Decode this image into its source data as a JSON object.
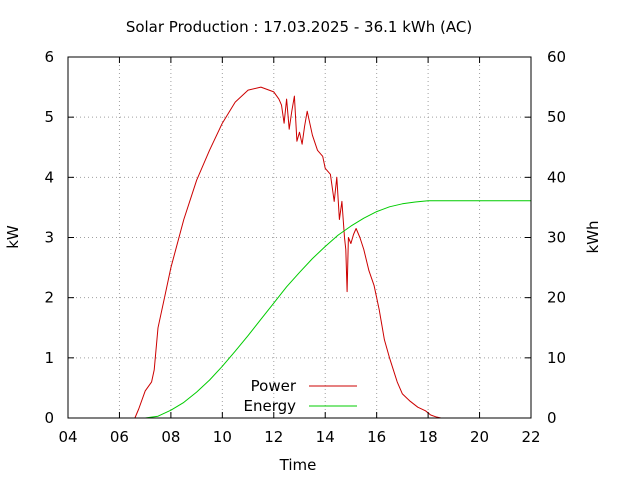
{
  "chart_data": {
    "type": "line",
    "title": "Solar Production : 17.03.2025 - 36.1 kWh (AC)",
    "xlabel": "Time",
    "ylabel_left": "kW",
    "ylabel_right": "kWh",
    "xlim": [
      4,
      22
    ],
    "ylim_left": [
      0,
      6
    ],
    "ylim_right": [
      0,
      60
    ],
    "x_ticks": [
      4,
      6,
      8,
      10,
      12,
      14,
      16,
      18,
      20,
      22
    ],
    "x_tick_labels": [
      "04",
      "06",
      "08",
      "10",
      "12",
      "14",
      "16",
      "18",
      "20",
      "22"
    ],
    "y_left_ticks": [
      0,
      1,
      2,
      3,
      4,
      5,
      6
    ],
    "y_left_tick_labels": [
      "0",
      "1",
      "2",
      "3",
      "4",
      "5",
      "6"
    ],
    "y_right_ticks": [
      0,
      10,
      20,
      30,
      40,
      50,
      60
    ],
    "y_right_tick_labels": [
      "0",
      "10",
      "20",
      "30",
      "40",
      "50",
      "60"
    ],
    "grid": true,
    "legend_position": "bottom-center",
    "series": [
      {
        "name": "Power",
        "axis": "left",
        "unit": "kW",
        "color": "#cc0000",
        "points": [
          [
            6.6,
            0.0
          ],
          [
            6.75,
            0.15
          ],
          [
            7.0,
            0.45
          ],
          [
            7.25,
            0.6
          ],
          [
            7.35,
            0.8
          ],
          [
            7.5,
            1.5
          ],
          [
            7.75,
            2.0
          ],
          [
            8.0,
            2.5
          ],
          [
            8.5,
            3.3
          ],
          [
            9.0,
            3.95
          ],
          [
            9.5,
            4.45
          ],
          [
            10.0,
            4.9
          ],
          [
            10.5,
            5.25
          ],
          [
            11.0,
            5.45
          ],
          [
            11.5,
            5.5
          ],
          [
            12.0,
            5.42
          ],
          [
            12.2,
            5.3
          ],
          [
            12.3,
            5.2
          ],
          [
            12.4,
            4.9
          ],
          [
            12.5,
            5.3
          ],
          [
            12.6,
            4.8
          ],
          [
            12.7,
            5.1
          ],
          [
            12.8,
            5.35
          ],
          [
            12.9,
            4.6
          ],
          [
            13.0,
            4.75
          ],
          [
            13.1,
            4.55
          ],
          [
            13.2,
            4.85
          ],
          [
            13.3,
            5.1
          ],
          [
            13.4,
            4.9
          ],
          [
            13.5,
            4.7
          ],
          [
            13.7,
            4.45
          ],
          [
            13.9,
            4.35
          ],
          [
            14.0,
            4.15
          ],
          [
            14.2,
            4.05
          ],
          [
            14.35,
            3.6
          ],
          [
            14.45,
            4.0
          ],
          [
            14.55,
            3.3
          ],
          [
            14.65,
            3.6
          ],
          [
            14.75,
            3.0
          ],
          [
            14.8,
            2.8
          ],
          [
            14.85,
            2.1
          ],
          [
            14.9,
            3.0
          ],
          [
            15.0,
            2.9
          ],
          [
            15.1,
            3.05
          ],
          [
            15.2,
            3.15
          ],
          [
            15.35,
            3.0
          ],
          [
            15.5,
            2.8
          ],
          [
            15.7,
            2.45
          ],
          [
            15.9,
            2.2
          ],
          [
            16.1,
            1.8
          ],
          [
            16.3,
            1.3
          ],
          [
            16.5,
            1.0
          ],
          [
            16.8,
            0.6
          ],
          [
            17.0,
            0.4
          ],
          [
            17.3,
            0.28
          ],
          [
            17.6,
            0.18
          ],
          [
            17.9,
            0.12
          ],
          [
            18.1,
            0.05
          ],
          [
            18.3,
            0.02
          ],
          [
            18.5,
            0.0
          ]
        ]
      },
      {
        "name": "Energy",
        "axis": "right",
        "unit": "kWh",
        "color": "#00cc00",
        "points": [
          [
            7.0,
            0.0
          ],
          [
            7.5,
            0.3
          ],
          [
            8.0,
            1.3
          ],
          [
            8.5,
            2.6
          ],
          [
            9.0,
            4.3
          ],
          [
            9.5,
            6.3
          ],
          [
            10.0,
            8.6
          ],
          [
            10.5,
            11.1
          ],
          [
            11.0,
            13.7
          ],
          [
            11.5,
            16.4
          ],
          [
            12.0,
            19.1
          ],
          [
            12.5,
            21.8
          ],
          [
            13.0,
            24.2
          ],
          [
            13.5,
            26.5
          ],
          [
            14.0,
            28.5
          ],
          [
            14.5,
            30.4
          ],
          [
            15.0,
            31.9
          ],
          [
            15.5,
            33.2
          ],
          [
            16.0,
            34.3
          ],
          [
            16.5,
            35.1
          ],
          [
            17.0,
            35.6
          ],
          [
            17.5,
            35.9
          ],
          [
            18.0,
            36.1
          ],
          [
            19.0,
            36.1
          ],
          [
            20.0,
            36.1
          ],
          [
            21.0,
            36.1
          ],
          [
            22.0,
            36.1
          ]
        ]
      }
    ]
  }
}
